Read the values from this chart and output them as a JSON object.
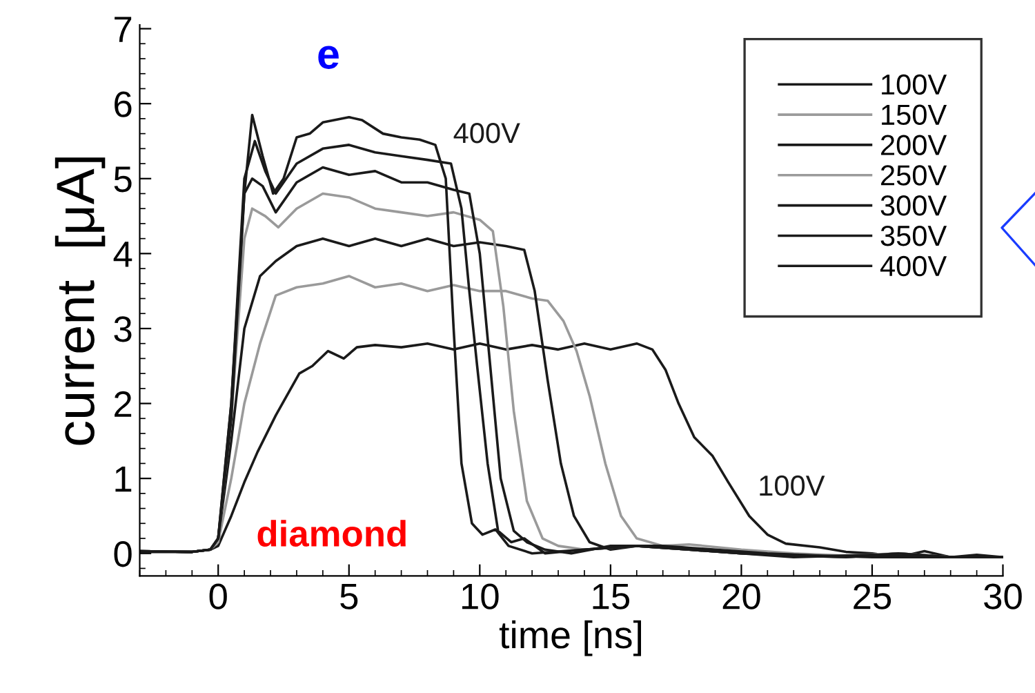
{
  "chart_data": {
    "type": "line",
    "xlabel": "time [ns]",
    "ylabel": "current  [μA]",
    "xlim": [
      -3,
      30
    ],
    "ylim": [
      -0.3,
      7.05
    ],
    "xticks": [
      0,
      5,
      10,
      15,
      20,
      25,
      30
    ],
    "yticks": [
      0,
      1,
      2,
      3,
      4,
      5,
      6,
      7
    ],
    "grid": false,
    "legend": "top right",
    "marker": "none",
    "line_style": "solid",
    "annotations": [
      "e",
      "diamond",
      "400V",
      "100V"
    ],
    "series": [
      {
        "name": "100V",
        "color": "#1a1a1a",
        "x": [
          -3,
          -1,
          -0.3,
          0,
          0.5,
          1,
          1.5,
          2.2,
          3.1,
          3.6,
          4.2,
          4.8,
          5.3,
          6,
          7,
          8,
          9,
          10,
          11,
          12,
          13,
          14,
          15,
          16,
          16.6,
          17.1,
          17.6,
          18.2,
          18.9,
          19.5,
          20.3,
          21,
          21.7,
          23,
          24,
          25,
          26,
          27,
          28,
          29,
          30
        ],
        "values": [
          0.03,
          0.02,
          0.05,
          0.1,
          0.5,
          0.95,
          1.35,
          1.84,
          2.4,
          2.5,
          2.7,
          2.6,
          2.75,
          2.78,
          2.75,
          2.8,
          2.72,
          2.8,
          2.72,
          2.78,
          2.72,
          2.8,
          2.72,
          2.8,
          2.72,
          2.45,
          2.0,
          1.55,
          1.3,
          0.95,
          0.5,
          0.25,
          0.13,
          0.08,
          0.02,
          0.0,
          -0.05,
          0.03,
          -0.05,
          -0.02,
          -0.05
        ]
      },
      {
        "name": "150V",
        "color": "#9a9a9a",
        "x": [
          -3,
          -1,
          -0.3,
          0,
          0.5,
          1,
          1.6,
          2.2,
          3,
          4,
          5,
          6,
          7,
          8,
          9,
          10,
          11,
          12,
          12.6,
          13.2,
          13.7,
          14.2,
          14.8,
          15.4,
          16,
          17,
          18,
          20,
          22,
          24,
          26,
          28,
          30
        ],
        "values": [
          0.03,
          0.02,
          0.05,
          0.15,
          1.0,
          2.0,
          2.8,
          3.44,
          3.55,
          3.6,
          3.7,
          3.55,
          3.6,
          3.5,
          3.58,
          3.5,
          3.5,
          3.4,
          3.37,
          3.1,
          2.7,
          2.1,
          1.2,
          0.5,
          0.2,
          0.1,
          0.12,
          0.05,
          0.0,
          -0.03,
          0.0,
          -0.05,
          -0.05
        ]
      },
      {
        "name": "200V",
        "color": "#1a1a1a",
        "x": [
          -3,
          -1,
          -0.3,
          0,
          0.5,
          1,
          1.6,
          2.2,
          3,
          4,
          5,
          6,
          7,
          8,
          9,
          10,
          11,
          11.7,
          12.1,
          12.6,
          13.1,
          13.6,
          14.2,
          15,
          16,
          18,
          20,
          22,
          24,
          26,
          28,
          30
        ],
        "values": [
          0.03,
          0.02,
          0.05,
          0.2,
          1.5,
          3.0,
          3.7,
          3.9,
          4.1,
          4.2,
          4.1,
          4.2,
          4.1,
          4.2,
          4.1,
          4.15,
          4.1,
          4.05,
          3.5,
          2.3,
          1.2,
          0.5,
          0.15,
          0.05,
          0.1,
          0.05,
          0.0,
          -0.02,
          -0.05,
          0.0,
          -0.05,
          -0.05
        ]
      },
      {
        "name": "250V",
        "color": "#9a9a9a",
        "x": [
          -3,
          -1,
          -0.3,
          0,
          0.5,
          1,
          1.3,
          1.8,
          2.3,
          3,
          4,
          5,
          6,
          7,
          8,
          9,
          10,
          10.5,
          10.9,
          11.3,
          11.8,
          12.4,
          13,
          14,
          16,
          18,
          20,
          22,
          24,
          26,
          28,
          30
        ],
        "values": [
          0.03,
          0.02,
          0.05,
          0.2,
          1.8,
          4.2,
          4.6,
          4.5,
          4.35,
          4.6,
          4.8,
          4.75,
          4.6,
          4.55,
          4.5,
          4.55,
          4.45,
          4.3,
          3.3,
          1.9,
          0.7,
          0.2,
          0.1,
          0.05,
          0.1,
          0.05,
          0.0,
          -0.03,
          -0.05,
          0.0,
          -0.05,
          -0.05
        ]
      },
      {
        "name": "300V",
        "color": "#1a1a1a",
        "x": [
          -3,
          -1,
          -0.3,
          0,
          0.5,
          1,
          1.3,
          1.7,
          2.2,
          3,
          4,
          5,
          6,
          7,
          8,
          9,
          9.6,
          10.0,
          10.4,
          10.8,
          11.3,
          11.8,
          12.5,
          13.5,
          15,
          17,
          19,
          21,
          23,
          25,
          27,
          30
        ],
        "values": [
          0.03,
          0.02,
          0.05,
          0.2,
          2.0,
          4.8,
          5.0,
          4.9,
          4.55,
          4.95,
          5.15,
          5.05,
          5.1,
          4.95,
          4.95,
          4.85,
          4.8,
          4.0,
          2.5,
          1.0,
          0.3,
          0.15,
          0.05,
          0.0,
          0.1,
          0.1,
          0.05,
          0.0,
          -0.03,
          -0.05,
          -0.05,
          -0.05
        ]
      },
      {
        "name": "350V",
        "color": "#1a1a1a",
        "x": [
          -3,
          -1,
          -0.3,
          0,
          0.5,
          1,
          1.4,
          1.8,
          2.2,
          3,
          4,
          5,
          6,
          7,
          8,
          8.9,
          9.3,
          9.6,
          9.9,
          10.3,
          10.7,
          11.2,
          11.7,
          12.5,
          14,
          16,
          18,
          20,
          22,
          24,
          26,
          28,
          30
        ],
        "values": [
          0.03,
          0.02,
          0.05,
          0.2,
          2.0,
          5.0,
          5.5,
          5.1,
          4.8,
          5.2,
          5.4,
          5.45,
          5.35,
          5.3,
          5.25,
          5.2,
          4.6,
          3.5,
          2.5,
          1.2,
          0.3,
          0.15,
          0.2,
          0.0,
          0.05,
          0.1,
          0.05,
          0.0,
          -0.03,
          -0.05,
          0.0,
          -0.05,
          -0.05
        ]
      },
      {
        "name": "400V",
        "color": "#1a1a1a",
        "x": [
          -3,
          -1,
          -0.3,
          0,
          0.5,
          1,
          1.3,
          1.7,
          2.1,
          2.5,
          3,
          3.5,
          4,
          5,
          5.5,
          6.3,
          7,
          7.7,
          8.3,
          8.7,
          9.0,
          9.3,
          9.7,
          10.1,
          10.6,
          11.1,
          12,
          14,
          16,
          18,
          20,
          22,
          25,
          28,
          30
        ],
        "values": [
          0.02,
          0.02,
          0.05,
          0.2,
          1.8,
          4.8,
          5.85,
          5.3,
          4.8,
          5.0,
          5.55,
          5.6,
          5.75,
          5.82,
          5.78,
          5.6,
          5.55,
          5.52,
          5.45,
          5.0,
          3.0,
          1.2,
          0.4,
          0.25,
          0.32,
          0.1,
          0.0,
          0.05,
          0.1,
          0.05,
          0.0,
          -0.05,
          -0.02,
          -0.05,
          -0.05
        ]
      }
    ]
  }
}
